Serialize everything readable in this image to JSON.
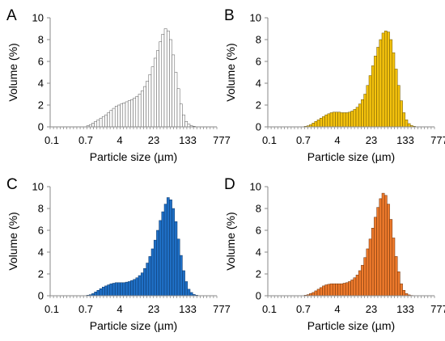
{
  "chart_data": [
    {
      "type": "bar",
      "panel_label": "A",
      "xlabel": "Particle size (µm)",
      "ylabel": "Volume (%)",
      "x_scale": "log",
      "x_ticks": [
        "0.1",
        "0.7",
        "4",
        "23",
        "133",
        "777"
      ],
      "ylim": [
        0,
        10
      ],
      "y_ticks": [
        0,
        2,
        4,
        6,
        8,
        10
      ],
      "grid": false,
      "bar_color": "#ffffff",
      "edge_color": "#555555",
      "values": [
        0.1,
        0.2,
        0.35,
        0.5,
        0.65,
        0.8,
        0.95,
        1.1,
        1.3,
        1.5,
        1.7,
        1.9,
        2.0,
        2.1,
        2.2,
        2.3,
        2.4,
        2.5,
        2.65,
        2.8,
        3.0,
        3.3,
        3.7,
        4.2,
        4.8,
        5.5,
        6.3,
        7.0,
        7.8,
        8.5,
        9.0,
        8.8,
        8.0,
        6.6,
        5.0,
        3.5,
        2.1,
        1.1,
        0.5,
        0.25,
        0.1,
        0.05
      ]
    },
    {
      "type": "bar",
      "panel_label": "B",
      "xlabel": "Particle size (µm)",
      "ylabel": "Volume (%)",
      "x_scale": "log",
      "x_ticks": [
        "0.1",
        "0.7",
        "4",
        "23",
        "133",
        "777"
      ],
      "ylim": [
        0,
        10
      ],
      "y_ticks": [
        0,
        2,
        4,
        6,
        8,
        10
      ],
      "grid": false,
      "bar_color": "#f4c20d",
      "edge_color": "#6b5400",
      "values": [
        0.05,
        0.1,
        0.2,
        0.35,
        0.5,
        0.65,
        0.8,
        0.95,
        1.1,
        1.2,
        1.3,
        1.35,
        1.35,
        1.35,
        1.3,
        1.3,
        1.3,
        1.35,
        1.45,
        1.6,
        1.8,
        2.1,
        2.5,
        3.0,
        3.8,
        4.7,
        5.6,
        6.5,
        7.3,
        8.0,
        8.6,
        8.8,
        8.7,
        8.0,
        6.8,
        5.3,
        3.8,
        2.4,
        1.3,
        0.65,
        0.3,
        0.12,
        0.05
      ]
    },
    {
      "type": "bar",
      "panel_label": "C",
      "xlabel": "Particle size (µm)",
      "ylabel": "Volume (%)",
      "x_scale": "log",
      "x_ticks": [
        "0.1",
        "0.7",
        "4",
        "23",
        "133",
        "777"
      ],
      "ylim": [
        0,
        10
      ],
      "y_ticks": [
        0,
        2,
        4,
        6,
        8,
        10
      ],
      "grid": false,
      "bar_color": "#1f6fc5",
      "edge_color": "#0b3566",
      "values": [
        0.05,
        0.1,
        0.2,
        0.35,
        0.5,
        0.65,
        0.8,
        0.9,
        1.0,
        1.1,
        1.15,
        1.2,
        1.2,
        1.2,
        1.2,
        1.25,
        1.3,
        1.4,
        1.5,
        1.65,
        1.85,
        2.1,
        2.5,
        3.0,
        3.6,
        4.3,
        5.1,
        6.0,
        6.9,
        7.7,
        8.4,
        9.0,
        8.8,
        8.0,
        6.8,
        5.2,
        3.7,
        2.3,
        1.3,
        0.6,
        0.3,
        0.12,
        0.05
      ]
    },
    {
      "type": "bar",
      "panel_label": "D",
      "xlabel": "Particle size (µm)",
      "ylabel": "Volume (%)",
      "x_scale": "log",
      "x_ticks": [
        "0.1",
        "0.7",
        "4",
        "23",
        "133",
        "777"
      ],
      "ylim": [
        0,
        10
      ],
      "y_ticks": [
        0,
        2,
        4,
        6,
        8,
        10
      ],
      "grid": false,
      "bar_color": "#ee7a2c",
      "edge_color": "#6a2f08",
      "values": [
        0.05,
        0.1,
        0.2,
        0.3,
        0.45,
        0.6,
        0.75,
        0.9,
        1.0,
        1.05,
        1.1,
        1.1,
        1.1,
        1.1,
        1.1,
        1.15,
        1.2,
        1.3,
        1.45,
        1.65,
        1.9,
        2.3,
        2.8,
        3.5,
        4.3,
        5.2,
        6.2,
        7.2,
        8.1,
        8.9,
        9.4,
        9.2,
        8.4,
        7.0,
        5.3,
        3.6,
        2.2,
        1.1,
        0.5,
        0.2,
        0.08,
        0.03
      ]
    }
  ]
}
